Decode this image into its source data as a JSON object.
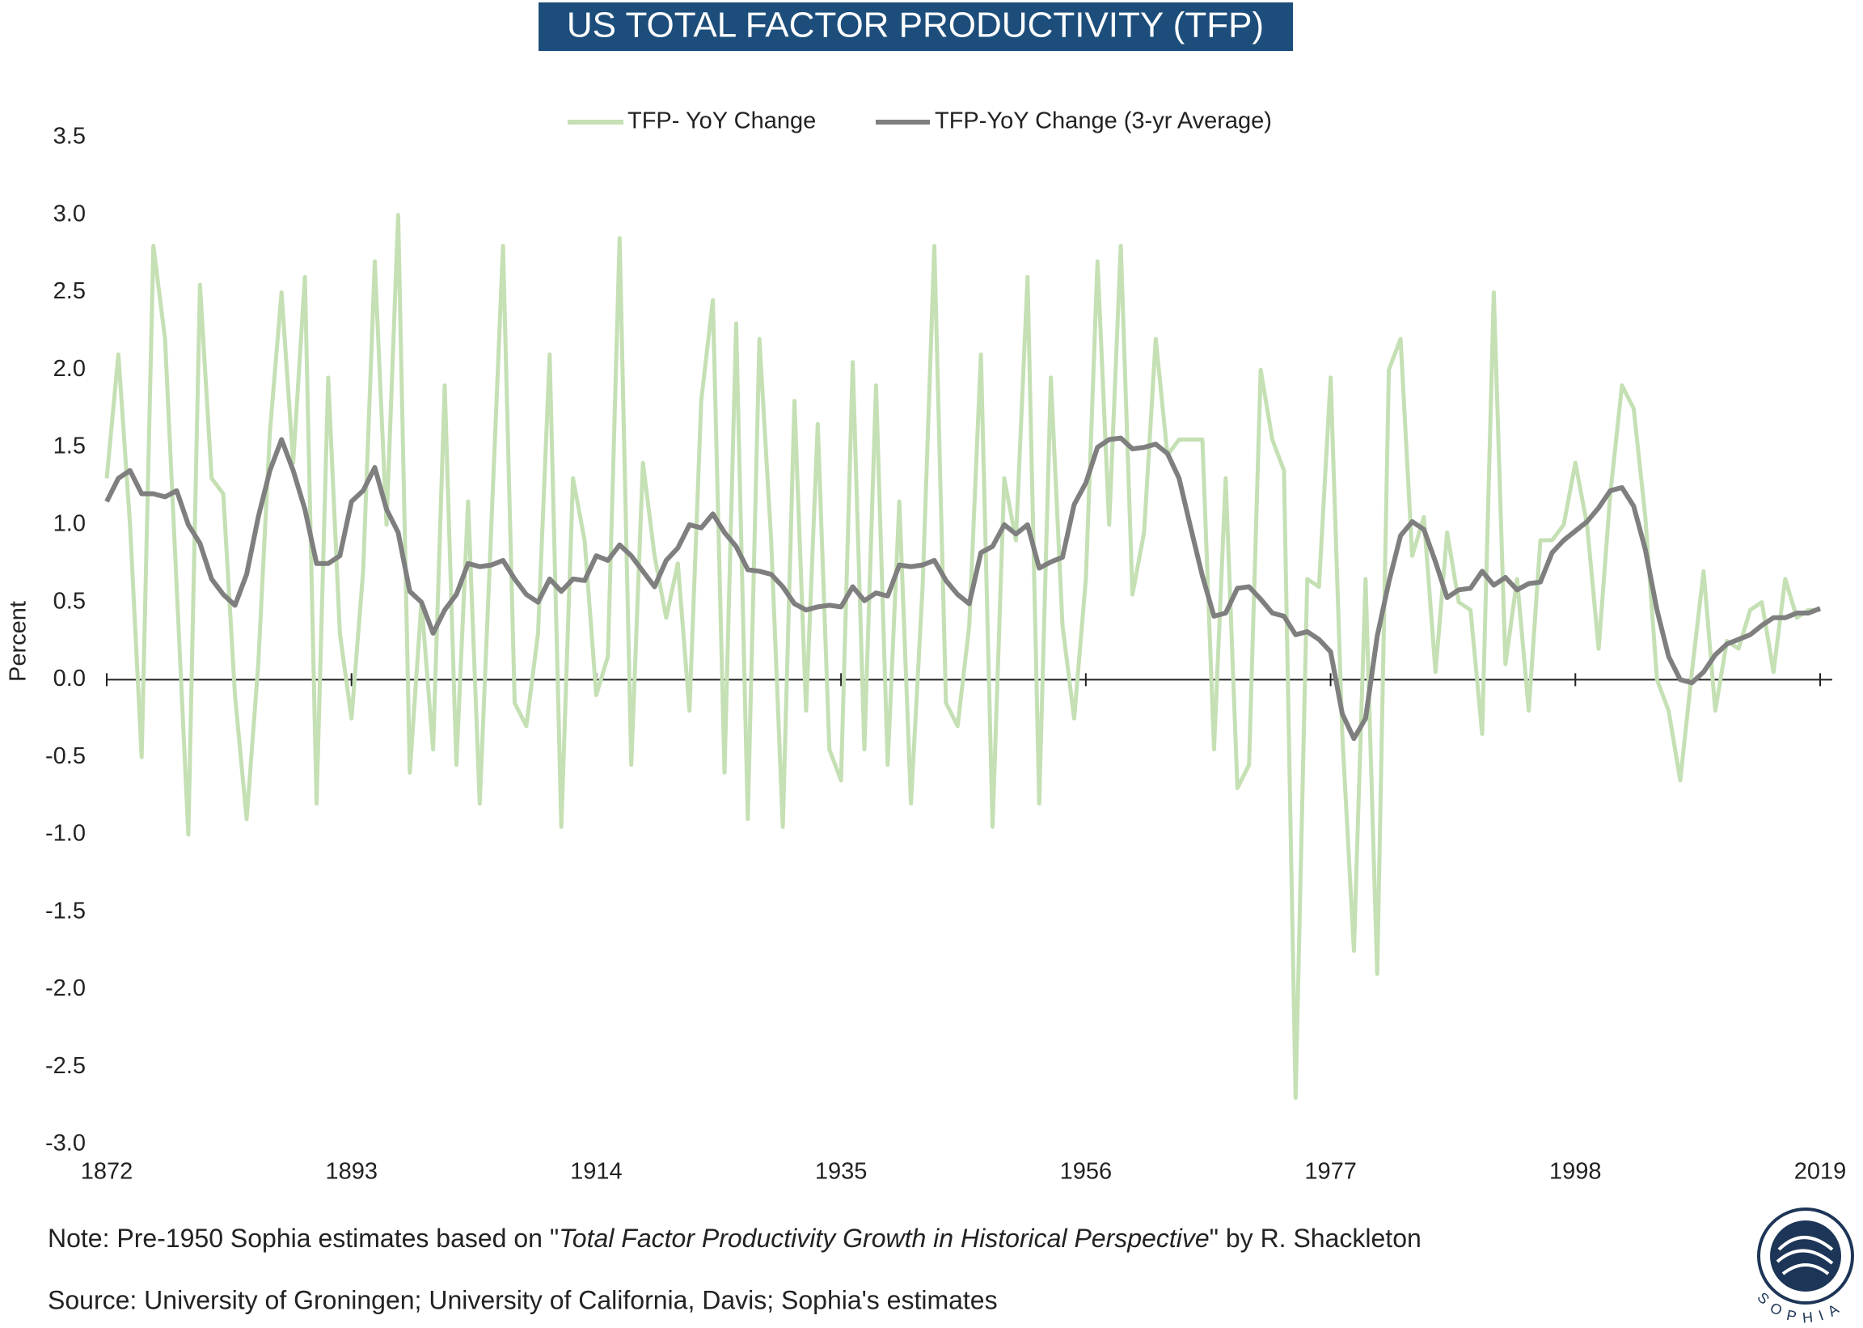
{
  "chart_data": {
    "type": "line",
    "title": "US TOTAL FACTOR PRODUCTIVITY (TFP)",
    "y_label": "Percent",
    "x": [
      1872,
      1873,
      1874,
      1875,
      1876,
      1877,
      1878,
      1879,
      1880,
      1881,
      1882,
      1883,
      1884,
      1885,
      1886,
      1887,
      1888,
      1889,
      1890,
      1891,
      1892,
      1893,
      1894,
      1895,
      1896,
      1897,
      1898,
      1899,
      1900,
      1901,
      1902,
      1903,
      1904,
      1905,
      1906,
      1907,
      1908,
      1909,
      1910,
      1911,
      1912,
      1913,
      1914,
      1915,
      1916,
      1917,
      1918,
      1919,
      1920,
      1921,
      1922,
      1923,
      1924,
      1925,
      1926,
      1927,
      1928,
      1929,
      1930,
      1931,
      1932,
      1933,
      1934,
      1935,
      1936,
      1937,
      1938,
      1939,
      1940,
      1941,
      1942,
      1943,
      1944,
      1945,
      1946,
      1947,
      1948,
      1949,
      1950,
      1951,
      1952,
      1953,
      1954,
      1955,
      1956,
      1957,
      1958,
      1959,
      1960,
      1961,
      1962,
      1963,
      1964,
      1965,
      1966,
      1967,
      1968,
      1969,
      1970,
      1971,
      1972,
      1973,
      1974,
      1975,
      1976,
      1977,
      1978,
      1979,
      1980,
      1981,
      1982,
      1983,
      1984,
      1985,
      1986,
      1987,
      1988,
      1989,
      1990,
      1991,
      1992,
      1993,
      1994,
      1995,
      1996,
      1997,
      1998,
      1999,
      2000,
      2001,
      2002,
      2003,
      2004,
      2005,
      2006,
      2007,
      2008,
      2009,
      2010,
      2011,
      2012,
      2013,
      2014,
      2015,
      2016,
      2017,
      2018,
      2019
    ],
    "series": [
      {
        "name": "TFP- YoY Change",
        "color": "#c5e0b4",
        "values": [
          1.3,
          2.1,
          1.0,
          -0.5,
          2.8,
          2.2,
          0.6,
          -1.0,
          2.55,
          1.3,
          1.2,
          -0.1,
          -0.9,
          0.1,
          1.6,
          2.5,
          1.4,
          2.6,
          -0.8,
          1.95,
          0.3,
          -0.25,
          0.7,
          2.7,
          1.0,
          3.0,
          -0.6,
          0.5,
          -0.45,
          1.9,
          -0.55,
          1.15,
          -0.8,
          1.0,
          2.8,
          -0.15,
          -0.3,
          0.3,
          2.1,
          -0.95,
          1.3,
          0.9,
          -0.1,
          0.15,
          2.85,
          -0.55,
          1.4,
          0.8,
          0.4,
          0.75,
          -0.2,
          1.8,
          2.45,
          -0.6,
          2.3,
          -0.9,
          2.2,
          0.9,
          -0.95,
          1.8,
          -0.2,
          1.65,
          -0.45,
          -0.65,
          2.05,
          -0.45,
          1.9,
          -0.55,
          1.15,
          -0.8,
          0.6,
          2.8,
          -0.15,
          -0.3,
          0.35,
          2.1,
          -0.95,
          1.3,
          0.9,
          2.6,
          -0.8,
          1.95,
          0.35,
          -0.25,
          0.65,
          2.7,
          1.0,
          2.8,
          0.55,
          0.95,
          2.2,
          1.45,
          1.55,
          1.55,
          1.55,
          -0.45,
          1.3,
          -0.7,
          -0.55,
          2.0,
          1.55,
          1.35,
          -2.7,
          0.65,
          0.6,
          1.95,
          -0.35,
          -1.75,
          0.65,
          -1.9,
          2.0,
          2.2,
          0.8,
          1.05,
          0.05,
          0.95,
          0.5,
          0.45,
          -0.35,
          2.5,
          0.1,
          0.65,
          -0.2,
          0.9,
          0.9,
          1.0,
          1.4,
          1.0,
          0.2,
          1.2,
          1.9,
          1.75,
          1.05,
          0.0,
          -0.2,
          -0.65,
          0.05,
          0.7,
          -0.2,
          0.25,
          0.2,
          0.45,
          0.5,
          0.05,
          0.65,
          0.4,
          0.45,
          0.45
        ]
      },
      {
        "name": "TFP-YoY Change (3-yr Average)",
        "color": "#7f7f7f",
        "values": [
          1.15,
          1.3,
          1.35,
          1.2,
          1.2,
          1.18,
          1.22,
          1.0,
          0.88,
          0.65,
          0.55,
          0.48,
          0.68,
          1.05,
          1.35,
          1.55,
          1.35,
          1.1,
          0.75,
          0.75,
          0.8,
          1.15,
          1.22,
          1.37,
          1.1,
          0.95,
          0.57,
          0.5,
          0.3,
          0.45,
          0.55,
          0.75,
          0.73,
          0.74,
          0.77,
          0.65,
          0.55,
          0.5,
          0.65,
          0.57,
          0.65,
          0.64,
          0.8,
          0.77,
          0.87,
          0.8,
          0.7,
          0.6,
          0.77,
          0.85,
          1.0,
          0.98,
          1.07,
          0.95,
          0.86,
          0.71,
          0.7,
          0.68,
          0.6,
          0.49,
          0.45,
          0.47,
          0.48,
          0.47,
          0.6,
          0.51,
          0.56,
          0.54,
          0.74,
          0.73,
          0.74,
          0.77,
          0.64,
          0.55,
          0.49,
          0.82,
          0.86,
          1.0,
          0.94,
          1.0,
          0.72,
          0.76,
          0.79,
          1.13,
          1.27,
          1.5,
          1.55,
          1.56,
          1.49,
          1.5,
          1.52,
          1.46,
          1.3,
          0.98,
          0.67,
          0.41,
          0.43,
          0.59,
          0.6,
          0.52,
          0.43,
          0.41,
          0.29,
          0.31,
          0.26,
          0.18,
          -0.22,
          -0.38,
          -0.25,
          0.28,
          0.63,
          0.93,
          1.02,
          0.97,
          0.76,
          0.53,
          0.58,
          0.59,
          0.7,
          0.61,
          0.66,
          0.58,
          0.62,
          0.63,
          0.82,
          0.9,
          0.96,
          1.02,
          1.11,
          1.22,
          1.24,
          1.12,
          0.84,
          0.45,
          0.15,
          0.0,
          -0.02,
          0.05,
          0.16,
          0.23,
          0.26,
          0.29,
          0.35,
          0.4,
          0.4,
          0.43,
          0.43,
          0.46
        ]
      }
    ],
    "xlim": [
      1872,
      2019
    ],
    "xticks": [
      1872,
      1893,
      1914,
      1935,
      1956,
      1977,
      1998,
      2019
    ],
    "ylim": [
      -3,
      3.5
    ],
    "yticks": [
      {
        "value": -3,
        "label": "-3.0"
      },
      -2.5,
      {
        "value": -2,
        "label": "-2.0"
      },
      -1.5,
      {
        "value": -1,
        "label": "-1.0"
      },
      -0.5,
      {
        "value": 0,
        "label": "0.0"
      },
      0.5,
      {
        "value": 1,
        "label": "1.0"
      },
      1.5,
      {
        "value": 2,
        "label": "2.0"
      },
      2.5,
      {
        "value": 3,
        "label": "3.0"
      },
      3.5
    ],
    "grid": false,
    "legend": "top",
    "note": {
      "prefix": "Note: Pre-1950 Sophia estimates based on \"",
      "italic": "Total Factor Productivity Growth in Historical Perspective",
      "suffix": "\" by R. Shackleton"
    },
    "source": "Source: University of Groningen; University of California, Davis; Sophia's estimates",
    "logo_text": "SOPHIA"
  }
}
